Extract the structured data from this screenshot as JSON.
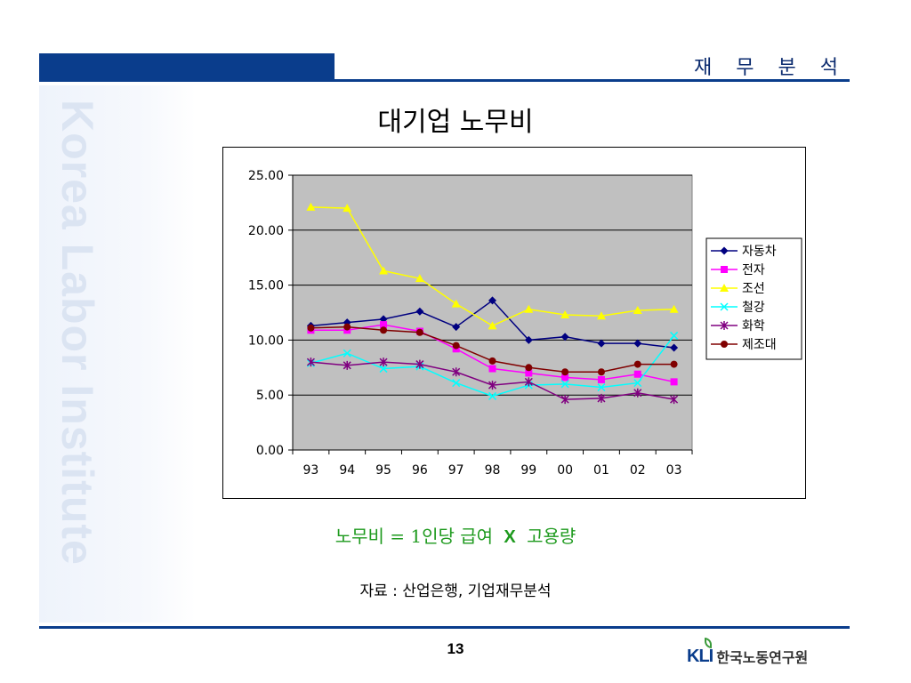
{
  "header": {
    "section_title": "재 무 분 석"
  },
  "watermark": "Korea Labor Institute",
  "footer": {
    "page_number": "13",
    "logo_mark": "KLI",
    "logo_org": "한국노동연구원"
  },
  "formula": {
    "left": "노무비 = 1인당 급여",
    "x": "X",
    "right": "고용량"
  },
  "source": "자료 : 산업은행, 기업재무분석",
  "colors": {
    "brand_blue": "#0a3d8c",
    "formula_green": "#1e9a1e",
    "plot_bg": "#c0c0c0"
  },
  "chart_data": {
    "type": "line",
    "title": "대기업 노무비",
    "xlabel": "",
    "ylabel": "",
    "categories": [
      "93",
      "94",
      "95",
      "96",
      "97",
      "98",
      "99",
      "00",
      "01",
      "02",
      "03"
    ],
    "y_ticks": [
      "25.00",
      "20.00",
      "15.00",
      "10.00",
      "5.00",
      "0.00"
    ],
    "ylim": [
      0,
      25
    ],
    "grid": true,
    "legend_position": "right",
    "series": [
      {
        "name": "자동차",
        "color": "#000080",
        "marker": "diamond",
        "values": [
          11.3,
          11.6,
          11.9,
          12.6,
          11.2,
          13.6,
          10.0,
          10.3,
          9.7,
          9.7,
          9.3
        ]
      },
      {
        "name": "전자",
        "color": "#ff00ff",
        "marker": "square",
        "values": [
          10.9,
          10.9,
          11.4,
          10.8,
          9.2,
          7.4,
          7.0,
          6.6,
          6.4,
          6.9,
          6.2
        ]
      },
      {
        "name": "조선",
        "color": "#ffff00",
        "marker": "triangle",
        "values": [
          22.1,
          22.0,
          16.3,
          15.6,
          13.3,
          11.3,
          12.8,
          12.3,
          12.2,
          12.7,
          12.8
        ]
      },
      {
        "name": "철강",
        "color": "#00ffff",
        "marker": "x",
        "values": [
          7.9,
          8.8,
          7.4,
          7.6,
          6.1,
          4.9,
          5.9,
          6.0,
          5.7,
          6.1,
          10.4
        ]
      },
      {
        "name": "화학",
        "color": "#800080",
        "marker": "star",
        "values": [
          8.0,
          7.7,
          8.0,
          7.8,
          7.1,
          5.9,
          6.2,
          4.6,
          4.7,
          5.2,
          4.6
        ]
      },
      {
        "name": "제조대",
        "color": "#800000",
        "marker": "circle",
        "values": [
          11.1,
          11.2,
          10.9,
          10.7,
          9.5,
          8.1,
          7.5,
          7.1,
          7.1,
          7.8,
          7.8
        ]
      }
    ]
  }
}
